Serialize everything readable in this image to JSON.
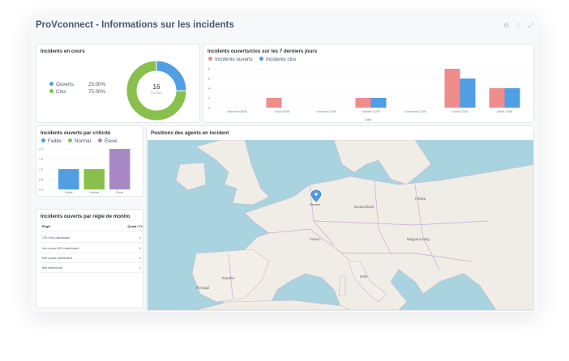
{
  "header": {
    "title": "ProVconnect - Informations sur les incidents"
  },
  "cards": {
    "incidents_en_cours": {
      "title": "Incidents en cours",
      "legend": [
        {
          "label": "Ouverts",
          "percent": "25.00%",
          "color": "#509ee3"
        },
        {
          "label": "Clos",
          "percent": "75.00%",
          "color": "#88bf4d"
        }
      ],
      "total_value": "16",
      "total_label": "TOTAL"
    },
    "ouverts_clos_7j": {
      "title": "Incidents ouverts/clos sur les 7 derniers jours",
      "legend": [
        {
          "label": "Incidents ouverts",
          "color": "#ef8c8c"
        },
        {
          "label": "Incidents clos",
          "color": "#509ee3"
        }
      ],
      "xlabel": "Date"
    },
    "par_criticite": {
      "title": "Incidents ouverts par criticité",
      "legend": [
        {
          "label": "Faible",
          "color": "#509ee3"
        },
        {
          "label": "Normal",
          "color": "#88bf4d"
        },
        {
          "label": "Élevé",
          "color": "#a989c5"
        }
      ]
    },
    "par_regle": {
      "title": "Incidents ouverts par règle de monito",
      "columns": [
        "Règle",
        "Quant i Té"
      ],
      "rows": [
        {
          "rule": "CPU frey dashboard",
          "count": "1"
        },
        {
          "rule": "free space 80% dashboard",
          "count": "1"
        },
        {
          "rule": "free space dashboard",
          "count": "1"
        },
        {
          "rule": "test dashboard",
          "count": "1"
        }
      ]
    },
    "positions": {
      "title": "Positions des agents en incident",
      "labels": [
        "Rennes",
        "France",
        "España",
        "Italia",
        "Deutschland",
        "Polska",
        "Magyarország",
        "Portugal"
      ]
    }
  },
  "chart_data": [
    {
      "type": "pie",
      "categories": [
        "Ouverts",
        "Clos"
      ],
      "values": [
        4,
        12
      ],
      "percents": [
        25.0,
        75.0
      ],
      "total": 16
    },
    {
      "type": "bar",
      "title": "Incidents ouverts/clos sur les 7 derniers jours",
      "xlabel": "Date",
      "categories": [
        "Mercredi 08/08",
        "Jeudi 09/08",
        "Vendredi 10/08",
        "Samedi 11/08",
        "Dimanche 12/08",
        "Lundi 13/08",
        "Mardi 14/08"
      ],
      "series": [
        {
          "name": "Incidents ouverts",
          "values": [
            0,
            2,
            0,
            2,
            0,
            8,
            4
          ]
        },
        {
          "name": "Incidents clos",
          "values": [
            0,
            0,
            0,
            2,
            0,
            6,
            4
          ]
        }
      ],
      "ylim": [
        0,
        8
      ],
      "yticks": [
        0,
        2,
        4,
        6,
        8
      ]
    },
    {
      "type": "bar",
      "title": "Incidents ouverts par criticité",
      "categories": [
        "Faible",
        "Normal",
        "Élevé"
      ],
      "values": [
        1.0,
        1.0,
        2.0
      ],
      "ylim": [
        0,
        2.0
      ],
      "yticks": [
        0.0,
        0.5,
        1.0,
        1.5,
        2.0
      ]
    }
  ],
  "colors": {
    "blue": "#509ee3",
    "green": "#88bf4d",
    "red": "#ef8c8c",
    "purple": "#a989c5"
  }
}
